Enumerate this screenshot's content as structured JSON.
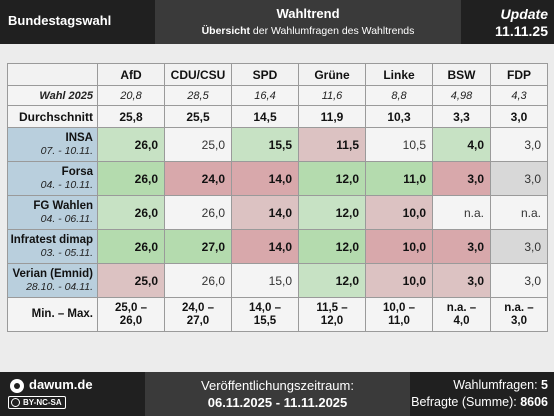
{
  "header": {
    "left_title": "Bundestagswahl",
    "title": "Wahltrend",
    "subtitle_bold": "Übersicht",
    "subtitle_rest": " der Wahlumfragen des Wahltrends",
    "update_label": "Update",
    "update_date": "11.11.25"
  },
  "table": {
    "parties": [
      "AfD",
      "CDU/CSU",
      "SPD",
      "Grüne",
      "Linke",
      "BSW",
      "FDP"
    ],
    "wahl_label": "Wahl 2025",
    "wahl": [
      "20,8",
      "28,5",
      "16,4",
      "11,6",
      "8,8",
      "4,98",
      "4,3"
    ],
    "avg_label": "Durchschnitt",
    "avg": [
      "25,8",
      "25,5",
      "14,5",
      "11,9",
      "10,3",
      "3,3",
      "3,0"
    ],
    "institutes": [
      {
        "name": "INSA",
        "date": "07. - 10.11.",
        "values": [
          "26,0",
          "25,0",
          "15,5",
          "11,5",
          "10,5",
          "4,0",
          "3,0"
        ]
      },
      {
        "name": "Forsa",
        "date": "04. - 10.11.",
        "values": [
          "26,0",
          "24,0",
          "14,0",
          "12,0",
          "11,0",
          "3,0",
          "3,0"
        ]
      },
      {
        "name": "FG Wahlen",
        "date": "04. - 06.11.",
        "values": [
          "26,0",
          "26,0",
          "14,0",
          "12,0",
          "10,0",
          "n.a.",
          "n.a."
        ]
      },
      {
        "name": "Infratest dimap",
        "date": "03. - 05.11.",
        "values": [
          "26,0",
          "27,0",
          "14,0",
          "12,0",
          "10,0",
          "3,0",
          "3,0"
        ]
      },
      {
        "name": "Verian (Emnid)",
        "date": "28.10. - 04.11.",
        "values": [
          "25,0",
          "26,0",
          "15,0",
          "12,0",
          "10,0",
          "3,0",
          "3,0"
        ]
      }
    ],
    "minmax_label": "Min. – Max.",
    "minmax": [
      {
        "min": "25,0 –",
        "max": "26,0"
      },
      {
        "min": "24,0 –",
        "max": "27,0"
      },
      {
        "min": "14,0 –",
        "max": "15,5"
      },
      {
        "min": "11,5 –",
        "max": "12,0"
      },
      {
        "min": "10,0 –",
        "max": "11,0"
      },
      {
        "min": "n.a. –",
        "max": "4,0"
      },
      {
        "min": "n.a. –",
        "max": "3,0"
      }
    ]
  },
  "footer": {
    "site": "dawum.de",
    "license": "BY-NC-SA",
    "period_label": "Veröffentlichungszeitraum:",
    "period": "06.11.2025 - 11.11.2025",
    "polls_label": "Wahlumfragen: ",
    "polls_value": "5",
    "respondents_label": "Befragte (Summe): ",
    "respondents_value": "8606"
  },
  "colors": {
    "header_bg": "#202020",
    "header_mid_bg": "#3a3a3a",
    "institute_bg": "#b9cfdd",
    "above_avg_strong": "#b4dbae",
    "above_avg": "#c7e2c4",
    "below_avg_strong": "#d8a8ab",
    "below_avg": "#dcc2c2"
  }
}
